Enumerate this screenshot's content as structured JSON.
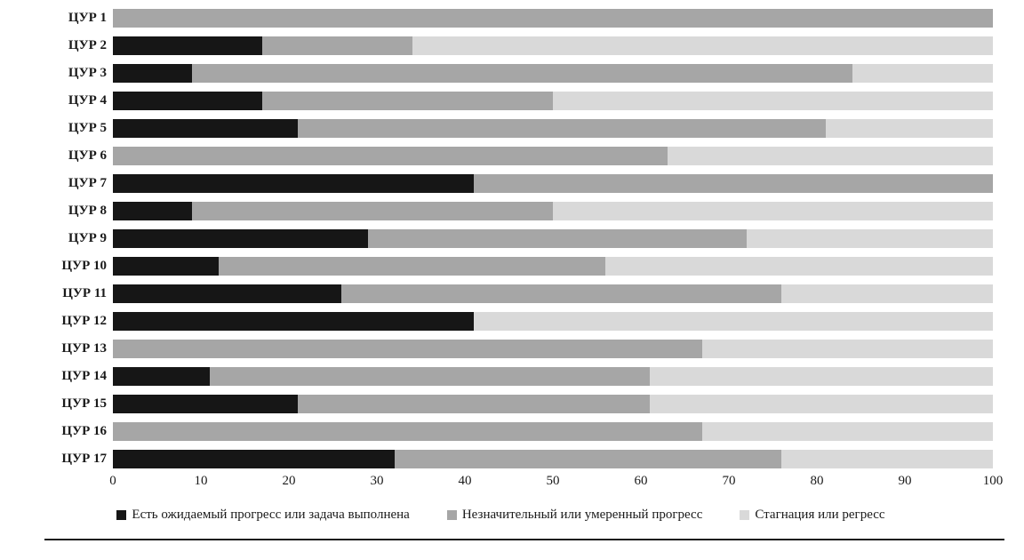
{
  "chart_data": {
    "type": "bar",
    "orientation": "horizontal",
    "stacked": true,
    "title": "",
    "xlabel": "",
    "ylabel": "",
    "xlim": [
      0,
      100
    ],
    "xticks": [
      0,
      10,
      20,
      30,
      40,
      50,
      60,
      70,
      80,
      90,
      100
    ],
    "grid": false,
    "legend_position": "bottom",
    "categories": [
      "ЦУР 1",
      "ЦУР 2",
      "ЦУР 3",
      "ЦУР 4",
      "ЦУР 5",
      "ЦУР 6",
      "ЦУР 7",
      "ЦУР 8",
      "ЦУР 9",
      "ЦУР 10",
      "ЦУР 11",
      "ЦУР 12",
      "ЦУР 13",
      "ЦУР 14",
      "ЦУР 15",
      "ЦУР 16",
      "ЦУР 17"
    ],
    "series": [
      {
        "name": "Есть ожидаемый прогресс или задача выполнена",
        "color": "#161616",
        "values": [
          0,
          17,
          9,
          17,
          21,
          0,
          41,
          9,
          29,
          12,
          26,
          41,
          0,
          11,
          21,
          0,
          32
        ]
      },
      {
        "name": "Незначительный или умеренный прогресс",
        "color": "#a6a6a6",
        "values": [
          100,
          17,
          75,
          33,
          60,
          63,
          59,
          41,
          43,
          44,
          50,
          0,
          67,
          50,
          40,
          67,
          44
        ]
      },
      {
        "name": "Стагнация или регресс",
        "color": "#d9d9d9",
        "values": [
          0,
          66,
          16,
          50,
          19,
          37,
          0,
          50,
          28,
          44,
          24,
          59,
          33,
          39,
          39,
          33,
          24
        ]
      }
    ]
  }
}
